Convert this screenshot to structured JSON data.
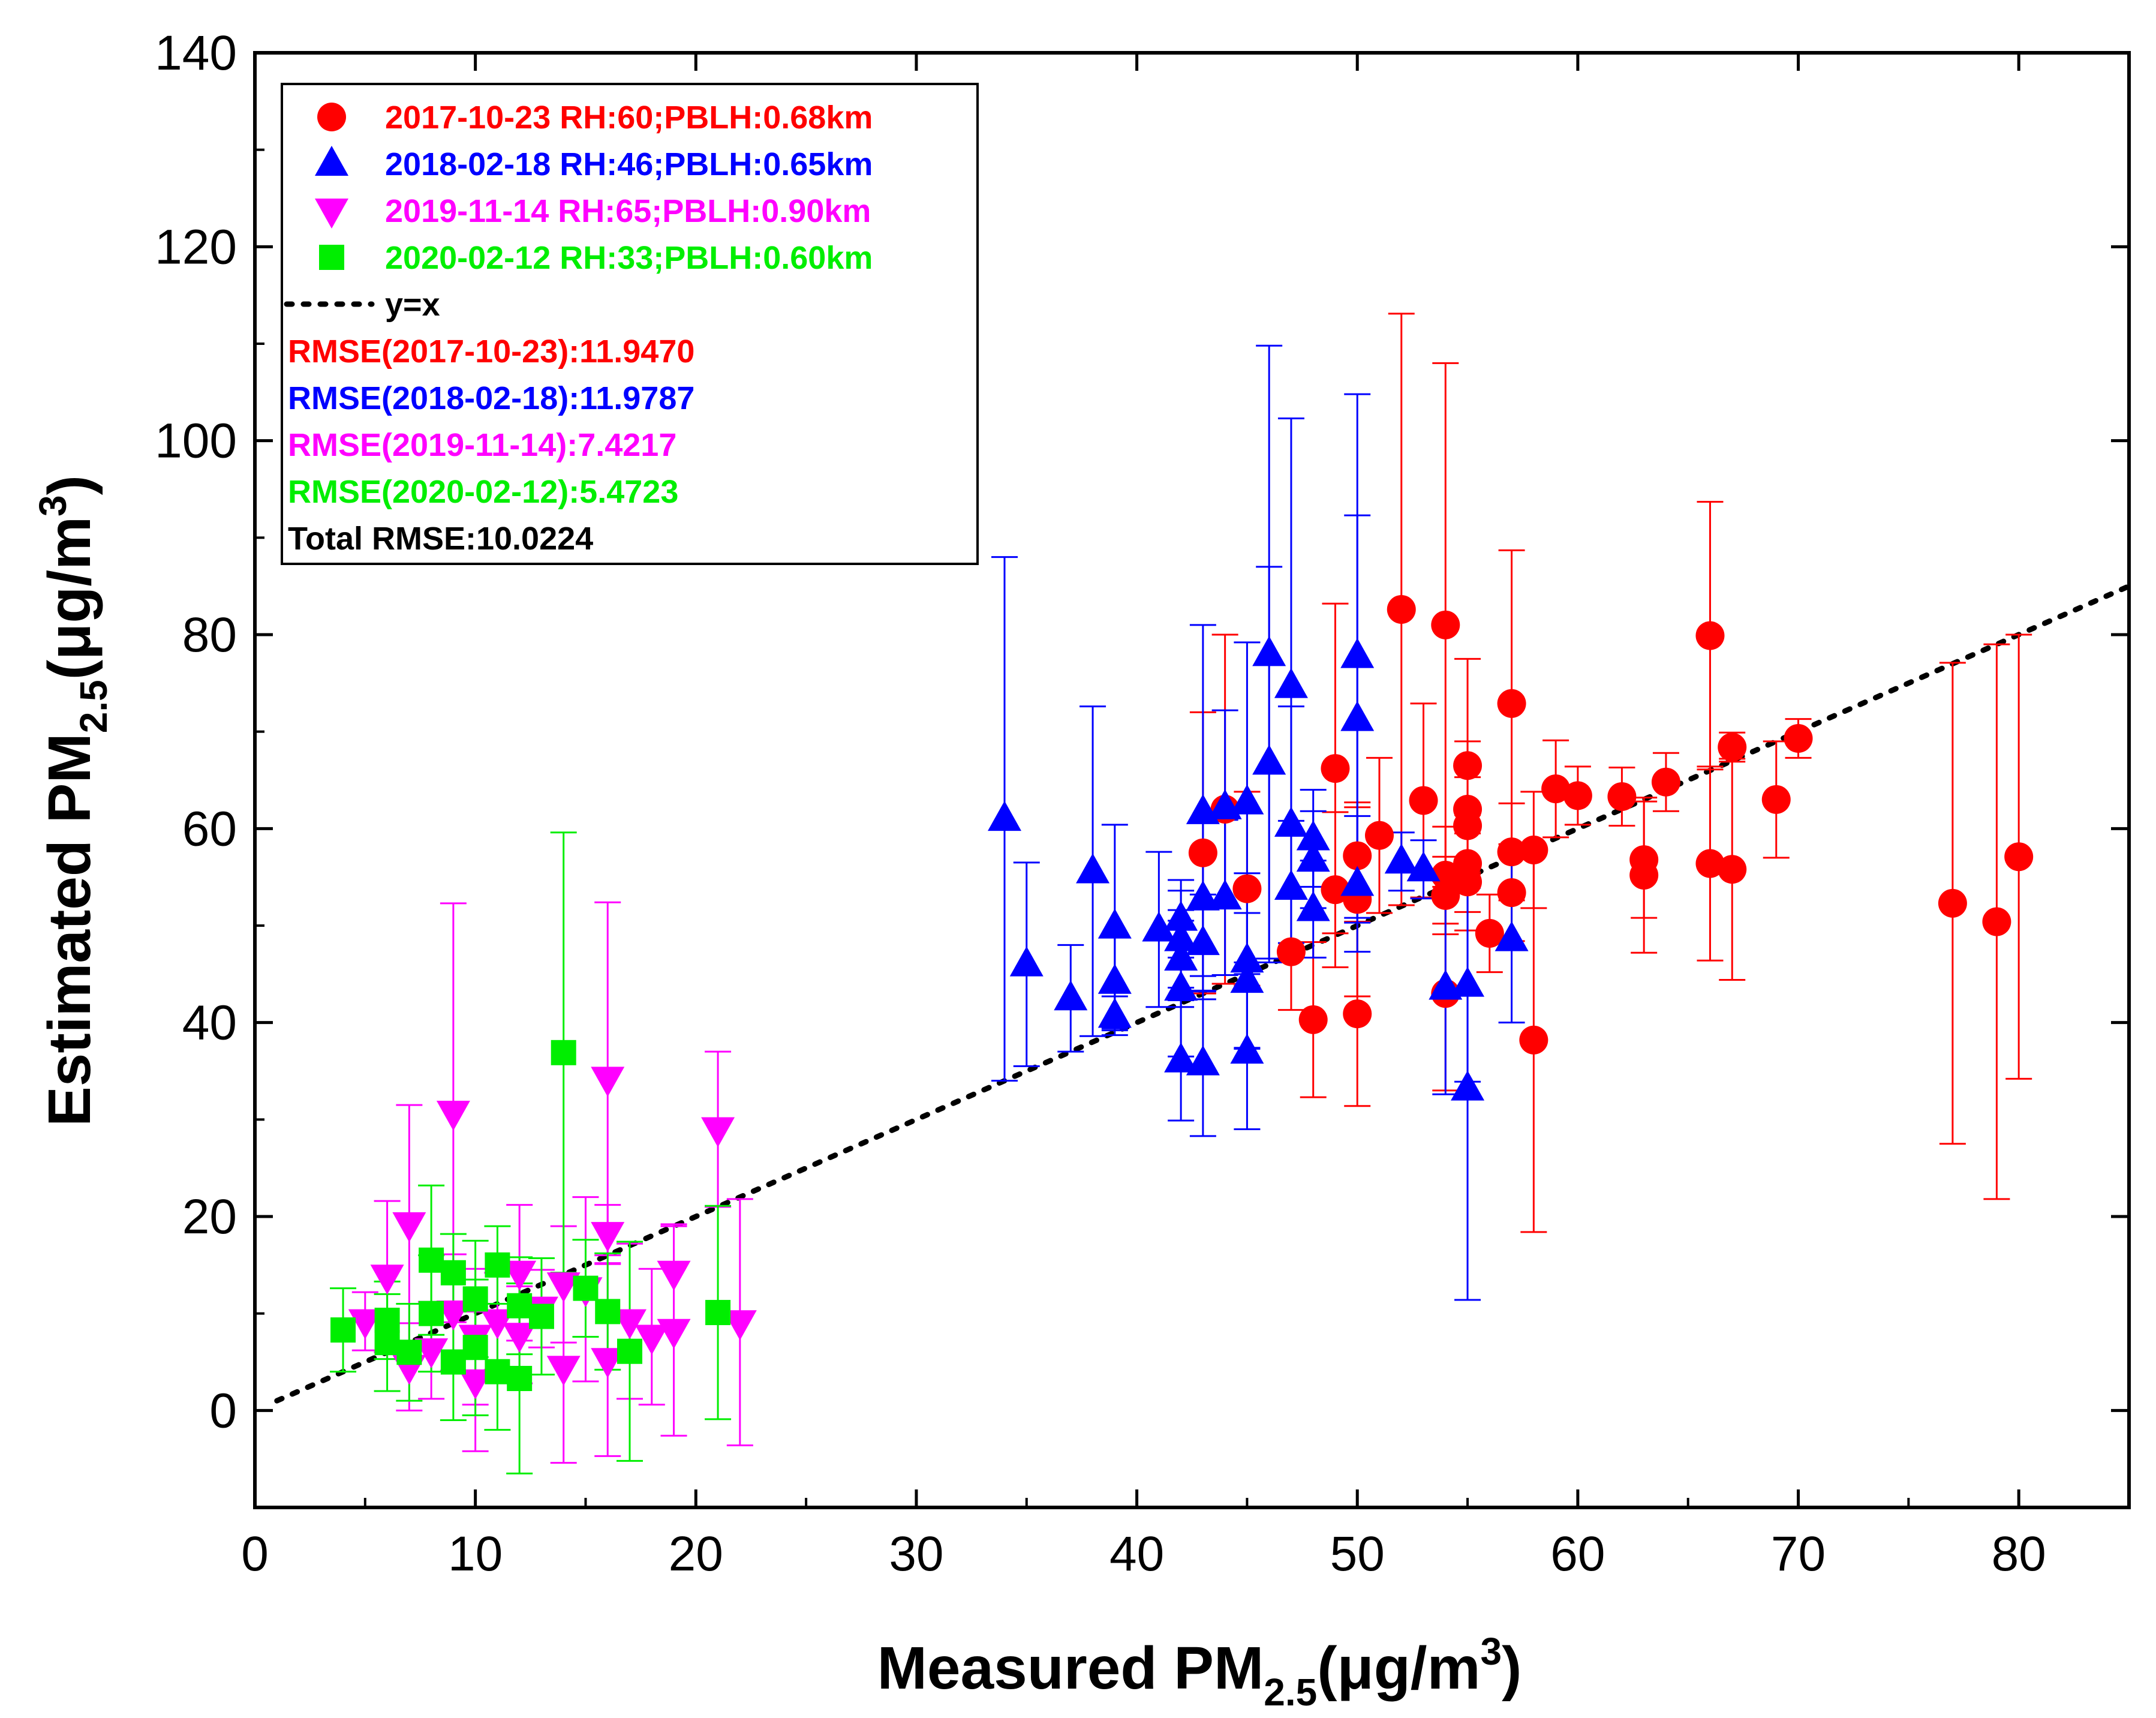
{
  "chart_data": {
    "type": "scatter",
    "title": "",
    "xlabel": {
      "main": "Measured PM",
      "sub": "2.5",
      "unit_pre": "(μg/m",
      "sup": "3",
      "unit_post": ")"
    },
    "ylabel": {
      "main": "Estimated PM",
      "sub": "2.5",
      "unit_pre": "(μg/m",
      "sup": "3",
      "unit_post": ")"
    },
    "xlim": [
      0,
      85
    ],
    "ylim": [
      -10,
      140
    ],
    "xticks": [
      0,
      10,
      20,
      30,
      40,
      50,
      60,
      70,
      80
    ],
    "yticks": [
      0,
      20,
      40,
      60,
      80,
      100,
      120,
      140
    ],
    "x_tick_labels": [
      "0",
      "10",
      "20",
      "30",
      "40",
      "50",
      "60",
      "70",
      "80"
    ],
    "y_tick_labels": [
      "0",
      "20",
      "40",
      "60",
      "80",
      "100",
      "120",
      "140"
    ],
    "grid": false,
    "legend_position": "top-left",
    "reference_line": {
      "label": "y=x",
      "color": "#000000",
      "style": "dotted",
      "x": [
        1,
        85
      ],
      "y": [
        1,
        85
      ]
    },
    "series": [
      {
        "name": "2017-10-23 RH:60;PBLH:0.68km",
        "color": "#ff0000",
        "marker": "circle",
        "points": [
          {
            "x": 43,
            "y": 57.5,
            "err": 14.5
          },
          {
            "x": 44,
            "y": 62,
            "err": 18
          },
          {
            "x": 45,
            "y": 53.8,
            "err": 10
          },
          {
            "x": 47,
            "y": 47.3,
            "err": 6
          },
          {
            "x": 48,
            "y": 40.3,
            "err": 8
          },
          {
            "x": 49,
            "y": 66.2,
            "err": 17
          },
          {
            "x": 49,
            "y": 53.7,
            "err": 8
          },
          {
            "x": 50,
            "y": 57.2,
            "err": 5
          },
          {
            "x": 50,
            "y": 52.7,
            "err": 10
          },
          {
            "x": 50,
            "y": 40.9,
            "err": 9.5
          },
          {
            "x": 51,
            "y": 59.3,
            "err": 8
          },
          {
            "x": 52,
            "y": 82.6,
            "err": 30.5
          },
          {
            "x": 53,
            "y": 62.9,
            "err": 10
          },
          {
            "x": 54,
            "y": 81,
            "err": 27
          },
          {
            "x": 54,
            "y": 55.2,
            "err": 5
          },
          {
            "x": 54,
            "y": 53.1,
            "err": 4
          },
          {
            "x": 54,
            "y": 43,
            "err": 10
          },
          {
            "x": 55,
            "y": 66.5,
            "err": 11
          },
          {
            "x": 55,
            "y": 62,
            "err": 7
          },
          {
            "x": 55,
            "y": 60.3,
            "err": 5
          },
          {
            "x": 55,
            "y": 56.4,
            "err": 5
          },
          {
            "x": 55,
            "y": 54.5,
            "err": 5
          },
          {
            "x": 56,
            "y": 49.2,
            "err": 4
          },
          {
            "x": 57,
            "y": 72.9,
            "err": 15.8
          },
          {
            "x": 57,
            "y": 57.6,
            "err": 5
          },
          {
            "x": 57,
            "y": 53.4,
            "err": 5
          },
          {
            "x": 58,
            "y": 57.8,
            "err": 6
          },
          {
            "x": 58,
            "y": 38.2,
            "err": 19.8
          },
          {
            "x": 59,
            "y": 64.1,
            "err": 5
          },
          {
            "x": 60,
            "y": 63.4,
            "err": 3
          },
          {
            "x": 62,
            "y": 63.3,
            "err": 3
          },
          {
            "x": 63,
            "y": 56.8,
            "err": 6
          },
          {
            "x": 63,
            "y": 55.2,
            "err": 8
          },
          {
            "x": 64,
            "y": 64.8,
            "err": 3
          },
          {
            "x": 66,
            "y": 79.9,
            "err": 13.8
          },
          {
            "x": 66,
            "y": 56.4,
            "err": 10
          },
          {
            "x": 67,
            "y": 68.4,
            "err": 1.5
          },
          {
            "x": 67,
            "y": 55.8,
            "err": 11.4
          },
          {
            "x": 69,
            "y": 63,
            "err": 6
          },
          {
            "x": 70,
            "y": 69.3,
            "err": 2
          },
          {
            "x": 77,
            "y": 52.3,
            "err": 24.8
          },
          {
            "x": 79,
            "y": 50.4,
            "err": 28.6
          },
          {
            "x": 80,
            "y": 57.1,
            "err": 22.9
          }
        ]
      },
      {
        "name": "2018-02-18 RH:46;PBLH:0.65km",
        "color": "#0000ff",
        "marker": "triangle-up",
        "points": [
          {
            "x": 34,
            "y": 61,
            "err": 27
          },
          {
            "x": 35,
            "y": 46,
            "err": 10.5
          },
          {
            "x": 37,
            "y": 42.5,
            "err": 5.5
          },
          {
            "x": 38,
            "y": 55.6,
            "err": 17
          },
          {
            "x": 39,
            "y": 49.9,
            "err": 10.5
          },
          {
            "x": 39,
            "y": 44.2,
            "err": 5
          },
          {
            "x": 39,
            "y": 40.7,
            "err": 2
          },
          {
            "x": 41,
            "y": 49.6,
            "err": 8
          },
          {
            "x": 42,
            "y": 50.7,
            "err": 4
          },
          {
            "x": 42,
            "y": 48.6,
            "err": 5
          },
          {
            "x": 42,
            "y": 46.6,
            "err": 5
          },
          {
            "x": 42,
            "y": 43.5,
            "err": 7
          },
          {
            "x": 42,
            "y": 36.1,
            "err": 6.2
          },
          {
            "x": 43,
            "y": 61.7,
            "err": 19.3
          },
          {
            "x": 43,
            "y": 52.8,
            "err": 8
          },
          {
            "x": 43,
            "y": 48.2,
            "err": 5
          },
          {
            "x": 43,
            "y": 35.8,
            "err": 7.5
          },
          {
            "x": 44,
            "y": 62.2,
            "err": 10
          },
          {
            "x": 44,
            "y": 52.9,
            "err": 8
          },
          {
            "x": 45,
            "y": 62.7,
            "err": 16.5
          },
          {
            "x": 45,
            "y": 46.4,
            "err": 9
          },
          {
            "x": 45,
            "y": 44.3,
            "err": 7
          },
          {
            "x": 45,
            "y": 37,
            "err": 8
          },
          {
            "x": 46,
            "y": 78,
            "err": 31.8
          },
          {
            "x": 46,
            "y": 66.8,
            "err": 20.2
          },
          {
            "x": 47,
            "y": 74.7,
            "err": 27.6
          },
          {
            "x": 47,
            "y": 60.4,
            "err": 12.2
          },
          {
            "x": 47,
            "y": 53.9,
            "err": 6.9
          },
          {
            "x": 48,
            "y": 59,
            "err": 5
          },
          {
            "x": 48,
            "y": 56.8,
            "err": 5
          },
          {
            "x": 48,
            "y": 51.7,
            "err": 5
          },
          {
            "x": 50,
            "y": 77.8,
            "err": 27
          },
          {
            "x": 50,
            "y": 71.3,
            "err": 21
          },
          {
            "x": 50,
            "y": 54.3,
            "err": 7
          },
          {
            "x": 52,
            "y": 56.6,
            "err": 3
          },
          {
            "x": 53,
            "y": 55.8,
            "err": 3
          },
          {
            "x": 54,
            "y": 43.6,
            "err": 11
          },
          {
            "x": 55,
            "y": 43.9,
            "err": 10
          },
          {
            "x": 55,
            "y": 33.2,
            "err": 21.8
          },
          {
            "x": 57,
            "y": 48.6,
            "err": 8.6
          }
        ]
      },
      {
        "name": "2019-11-14 RH:65;PBLH:0.90km",
        "color": "#ff00ff",
        "marker": "triangle-down",
        "points": [
          {
            "x": 5,
            "y": 9.2,
            "err": 3
          },
          {
            "x": 6,
            "y": 13.8,
            "err": 7.8
          },
          {
            "x": 7,
            "y": 19.2,
            "err": 12.3
          },
          {
            "x": 7,
            "y": 4.5,
            "err": 4.5
          },
          {
            "x": 8,
            "y": 6.2,
            "err": 5
          },
          {
            "x": 9,
            "y": 30.7,
            "err": 21.6
          },
          {
            "x": 9,
            "y": 10.1,
            "err": 6
          },
          {
            "x": 10,
            "y": 7.6,
            "err": 7
          },
          {
            "x": 10,
            "y": 3,
            "err": 7.2
          },
          {
            "x": 11,
            "y": 9.2,
            "err": 5
          },
          {
            "x": 12,
            "y": 14.2,
            "err": 7
          },
          {
            "x": 12,
            "y": 7.8,
            "err": 5
          },
          {
            "x": 13,
            "y": 10.5,
            "err": 4
          },
          {
            "x": 14,
            "y": 13,
            "err": 6
          },
          {
            "x": 14,
            "y": 4.4,
            "err": 9.8
          },
          {
            "x": 15,
            "y": 12.5,
            "err": 9.5
          },
          {
            "x": 16,
            "y": 34.2,
            "err": 18.2
          },
          {
            "x": 16,
            "y": 18.2,
            "err": 3
          },
          {
            "x": 16,
            "y": 5.2,
            "err": 9.9
          },
          {
            "x": 17,
            "y": 9.2,
            "err": 8
          },
          {
            "x": 18,
            "y": 7.6,
            "err": 7
          },
          {
            "x": 19,
            "y": 14.2,
            "err": 5
          },
          {
            "x": 19,
            "y": 8.2,
            "err": 10.8
          },
          {
            "x": 21,
            "y": 29,
            "err": 8
          },
          {
            "x": 22,
            "y": 9.1,
            "err": 12.7
          }
        ]
      },
      {
        "name": "2020-02-12 RH:33;PBLH:0.60km",
        "color": "#00ee00",
        "marker": "square",
        "points": [
          {
            "x": 4,
            "y": 8.3,
            "err": 4.3
          },
          {
            "x": 6,
            "y": 9.3,
            "err": 4
          },
          {
            "x": 6,
            "y": 7,
            "err": 5
          },
          {
            "x": 7,
            "y": 6,
            "err": 5
          },
          {
            "x": 8,
            "y": 15.5,
            "err": 7.7
          },
          {
            "x": 8,
            "y": 10,
            "err": 6
          },
          {
            "x": 9,
            "y": 14.2,
            "err": 4
          },
          {
            "x": 9,
            "y": 5,
            "err": 6
          },
          {
            "x": 10,
            "y": 11.5,
            "err": 6
          },
          {
            "x": 10,
            "y": 6.5,
            "err": 7
          },
          {
            "x": 11,
            "y": 15,
            "err": 4
          },
          {
            "x": 11,
            "y": 4,
            "err": 6
          },
          {
            "x": 12,
            "y": 10.8,
            "err": 5
          },
          {
            "x": 12,
            "y": 3.3,
            "err": 9.8
          },
          {
            "x": 13,
            "y": 9.7,
            "err": 6
          },
          {
            "x": 14,
            "y": 36.9,
            "err": 22.7
          },
          {
            "x": 15,
            "y": 12.6,
            "err": 5
          },
          {
            "x": 16,
            "y": 10.2,
            "err": 6
          },
          {
            "x": 17,
            "y": 6.1,
            "err": 11.3
          },
          {
            "x": 21,
            "y": 10.1,
            "err": 11
          }
        ]
      }
    ],
    "legend": {
      "entries": [
        {
          "label": "2017-10-23 RH:60;PBLH:0.68km",
          "color": "#ff0000",
          "marker": "circle"
        },
        {
          "label": "2018-02-18 RH:46;PBLH:0.65km",
          "color": "#0000ff",
          "marker": "triangle-up"
        },
        {
          "label": "2019-11-14 RH:65;PBLH:0.90km",
          "color": "#ff00ff",
          "marker": "triangle-down"
        },
        {
          "label": "2020-02-12 RH:33;PBLH:0.60km",
          "color": "#00ee00",
          "marker": "square"
        },
        {
          "label": "y=x",
          "color": "#000000",
          "marker": "dotted-line"
        }
      ],
      "stats": [
        {
          "text": "RMSE(2017-10-23):11.9470",
          "color": "#ff0000"
        },
        {
          "text": "RMSE(2018-02-18):11.9787",
          "color": "#0000ff"
        },
        {
          "text": "RMSE(2019-11-14):7.4217",
          "color": "#ff00ff"
        },
        {
          "text": "RMSE(2020-02-12):5.4723",
          "color": "#00ee00"
        },
        {
          "text": "Total RMSE:10.0224",
          "color": "#000000"
        }
      ]
    }
  }
}
